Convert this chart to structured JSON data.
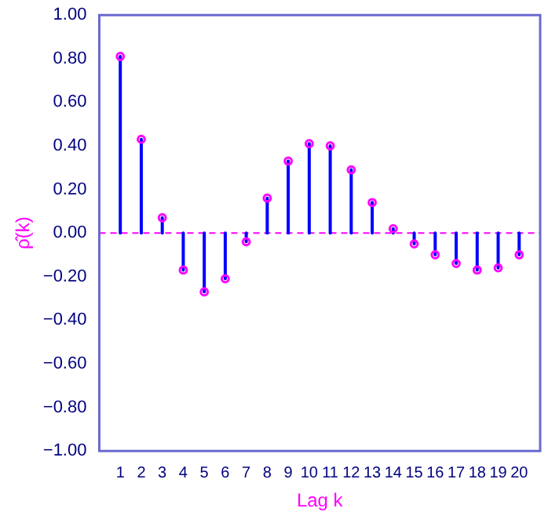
{
  "chart_data": {
    "type": "lollipop",
    "xlabel": "Lag k",
    "ylabel": "ρ̂(k)",
    "x": [
      1,
      2,
      3,
      4,
      5,
      6,
      7,
      8,
      9,
      10,
      11,
      12,
      13,
      14,
      15,
      16,
      17,
      18,
      19,
      20
    ],
    "series": [
      {
        "color": "#ff00ff",
        "values": [
          0.81,
          0.43,
          0.07,
          -0.17,
          -0.27,
          -0.21,
          -0.04,
          0.16,
          0.33,
          0.41,
          0.4,
          0.29,
          0.14,
          0.02,
          -0.05,
          -0.1,
          -0.14,
          -0.17,
          -0.16,
          -0.1
        ]
      }
    ],
    "xlim": [
      0,
      21
    ],
    "xticks": [
      1,
      2,
      3,
      4,
      5,
      6,
      7,
      8,
      9,
      10,
      11,
      12,
      13,
      14,
      15,
      16,
      17,
      18,
      19,
      20
    ],
    "ylim": [
      -1,
      1
    ],
    "yticks": [
      {
        "value": -1,
        "label": "−1.00"
      },
      {
        "value": -0.8,
        "label": "−0.80"
      },
      {
        "value": -0.6,
        "label": "−0.60"
      },
      {
        "value": -0.4,
        "label": "−0.40"
      },
      {
        "value": -0.2,
        "label": "−0.20"
      },
      {
        "value": 0,
        "label": "0.00"
      },
      {
        "value": 0.2,
        "label": "0.20"
      },
      {
        "value": 0.4,
        "label": "0.40"
      },
      {
        "value": 0.6,
        "label": "0.60"
      },
      {
        "value": 0.8,
        "label": "0.80"
      },
      {
        "value": 1,
        "label": "1.00"
      }
    ],
    "ref_lines": [
      {
        "axis": "y",
        "value": 0,
        "color": "#ff00ff",
        "line_style": "dashed"
      }
    ],
    "marker": "circle",
    "grid": false,
    "legend": false
  }
}
